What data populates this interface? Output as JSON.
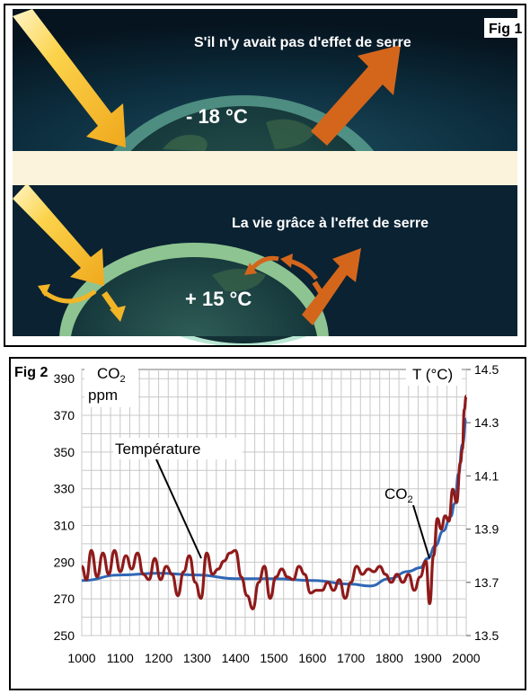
{
  "fig1": {
    "label": "Fig 1",
    "top_caption": "S'il n'y avait pas d'effet de serre",
    "top_temperature": "- 18 °C",
    "bottom_caption": "La vie grâce à l'effet de serre",
    "bottom_temperature": "+ 15 °C"
  },
  "fig2": {
    "label": "Fig 2",
    "left_unit_line1": "CO",
    "left_unit_sub": "2",
    "left_unit_line2": "ppm",
    "right_unit": "T (°C)",
    "annotation_temperature": "Température",
    "annotation_co2": "CO",
    "annotation_co2_sub": "2"
  },
  "colors": {
    "space": "#0b2233",
    "band": "#fcf3dc",
    "sun_arrow": "#f7c432",
    "ir_arrow": "#d4661c",
    "co2_line": "#2f67b6",
    "temp_line": "#8f1a1a"
  },
  "chart_data": {
    "type": "line",
    "x_label": "",
    "x_ticks": [
      1000,
      1100,
      1200,
      1300,
      1400,
      1500,
      1600,
      1700,
      1800,
      1900,
      2000
    ],
    "xlim": [
      1000,
      2000
    ],
    "left_axis": {
      "ticks": [
        250,
        270,
        290,
        310,
        330,
        350,
        370,
        390
      ],
      "ylim": [
        250,
        395
      ]
    },
    "right_axis": {
      "ticks": [
        13.5,
        13.7,
        13.9,
        14.1,
        14.3,
        14.5
      ],
      "ylim": [
        13.5,
        14.5
      ]
    },
    "grid": true,
    "series": [
      {
        "name": "CO2",
        "axis": "left",
        "x": [
          1000,
          1100,
          1200,
          1300,
          1400,
          1500,
          1600,
          1700,
          1750,
          1800,
          1850,
          1880,
          1900,
          1920,
          1940,
          1960,
          1970,
          1980,
          1990,
          2000
        ],
        "y": [
          280,
          283,
          284,
          283,
          281,
          281,
          280,
          278,
          277,
          281,
          285,
          287,
          292,
          299,
          307,
          315,
          322,
          338,
          354,
          368
        ]
      },
      {
        "name": "Température",
        "axis": "right",
        "x": [
          1000,
          1012,
          1025,
          1040,
          1055,
          1070,
          1085,
          1100,
          1115,
          1130,
          1145,
          1160,
          1175,
          1190,
          1205,
          1220,
          1235,
          1250,
          1265,
          1280,
          1295,
          1310,
          1325,
          1340,
          1355,
          1370,
          1385,
          1400,
          1415,
          1430,
          1445,
          1460,
          1475,
          1490,
          1505,
          1520,
          1535,
          1550,
          1565,
          1580,
          1595,
          1610,
          1625,
          1640,
          1655,
          1670,
          1685,
          1700,
          1715,
          1730,
          1745,
          1760,
          1775,
          1790,
          1805,
          1820,
          1835,
          1850,
          1865,
          1880,
          1895,
          1905,
          1915,
          1925,
          1935,
          1945,
          1955,
          1965,
          1975,
          1985,
          1990,
          1995,
          2000
        ],
        "y": [
          13.76,
          13.71,
          13.82,
          13.72,
          13.81,
          13.73,
          13.82,
          13.74,
          13.8,
          13.75,
          13.81,
          13.73,
          13.71,
          13.79,
          13.71,
          13.76,
          13.73,
          13.65,
          13.74,
          13.8,
          13.7,
          13.64,
          13.81,
          13.73,
          13.75,
          13.78,
          13.81,
          13.82,
          13.72,
          13.65,
          13.6,
          13.7,
          13.76,
          13.64,
          13.72,
          13.75,
          13.72,
          13.71,
          13.76,
          13.73,
          13.66,
          13.67,
          13.67,
          13.7,
          13.67,
          13.71,
          13.64,
          13.7,
          13.76,
          13.73,
          13.75,
          13.74,
          13.76,
          13.73,
          13.7,
          13.73,
          13.7,
          13.73,
          13.67,
          13.72,
          13.78,
          13.62,
          13.8,
          13.94,
          13.9,
          13.95,
          13.93,
          14.05,
          14.0,
          14.15,
          14.2,
          14.35,
          14.4
        ]
      }
    ]
  }
}
